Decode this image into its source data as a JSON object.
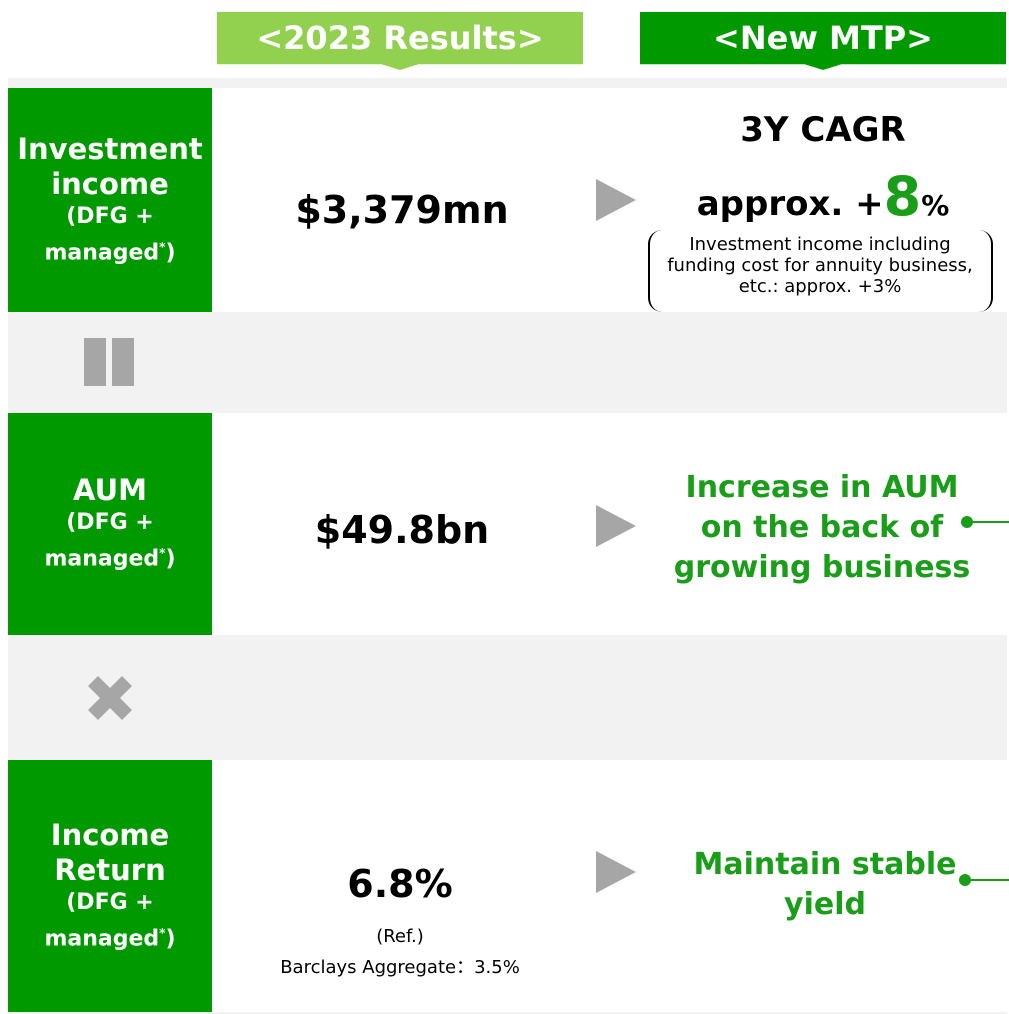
{
  "headers": {
    "results": "<2023 Results>",
    "mtp": "<New MTP>"
  },
  "rows": [
    {
      "label": "Investment income",
      "sub_start": "(DFG +",
      "sub": "managed",
      "note_mark": "*",
      "sub_end": ")",
      "result": "$3,379mn",
      "target_title": "3Y CAGR",
      "target_prefix": "approx. +",
      "target_number": "8",
      "target_suffix": "%",
      "target_note": "Investment income including funding cost for annuity business, etc.: approx. +3%"
    },
    {
      "label": "AUM",
      "sub_start": "(DFG +",
      "sub": "managed",
      "note_mark": "*",
      "sub_end": ")",
      "result": "$49.8bn",
      "target": "Increase in AUM on the back of growing business"
    },
    {
      "label": "Income Return",
      "sub_start": "(DFG +",
      "sub": "managed",
      "note_mark": "*",
      "sub_end": ")",
      "result": "6.8%",
      "result_ref": "(Ref.)",
      "result_note": "Barclays Aggregate：3.5%",
      "target": "Maintain stable yield"
    }
  ]
}
